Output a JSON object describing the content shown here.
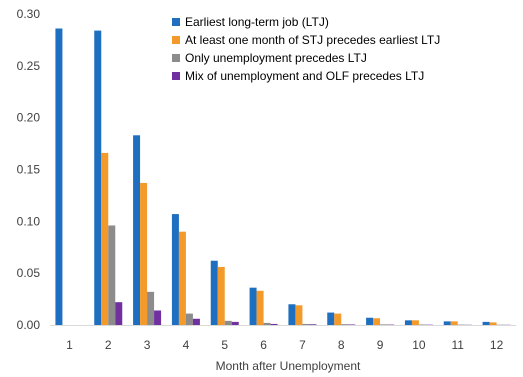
{
  "chart_data": {
    "type": "bar",
    "categories": [
      "1",
      "2",
      "3",
      "4",
      "5",
      "6",
      "7",
      "8",
      "9",
      "10",
      "11",
      "12"
    ],
    "series": [
      {
        "name": "Earliest long-term job (LTJ)",
        "color": "#1f6fc1",
        "values": [
          0.286,
          0.284,
          0.183,
          0.107,
          0.062,
          0.036,
          0.02,
          0.012,
          0.007,
          0.0045,
          0.0035,
          0.003
        ]
      },
      {
        "name": "At least one month of STJ precedes earliest LTJ",
        "color": "#f39a2b",
        "values": [
          0.0,
          0.166,
          0.137,
          0.09,
          0.056,
          0.033,
          0.019,
          0.011,
          0.0065,
          0.0045,
          0.0035,
          0.0025
        ]
      },
      {
        "name": "Only unemployment precedes LTJ",
        "color": "#8c8c8c",
        "values": [
          0.0,
          0.096,
          0.032,
          0.011,
          0.004,
          0.002,
          0.001,
          0.0008,
          0.0006,
          0.0005,
          0.0004,
          0.0003
        ]
      },
      {
        "name": "Mix of unemployment and OLF precedes LTJ",
        "color": "#7030a0",
        "values": [
          0.0,
          0.022,
          0.014,
          0.006,
          0.003,
          0.001,
          0.0007,
          0.0005,
          0.0004,
          0.0003,
          0.0002,
          0.0002
        ]
      }
    ],
    "title": "",
    "xlabel": "Month after Unemployment",
    "ylabel": "",
    "ylim": [
      0,
      0.3
    ],
    "yticks": [
      "0.00",
      "0.05",
      "0.10",
      "0.15",
      "0.20",
      "0.25",
      "0.30"
    ],
    "grid": false,
    "legend_position": "top-right"
  }
}
